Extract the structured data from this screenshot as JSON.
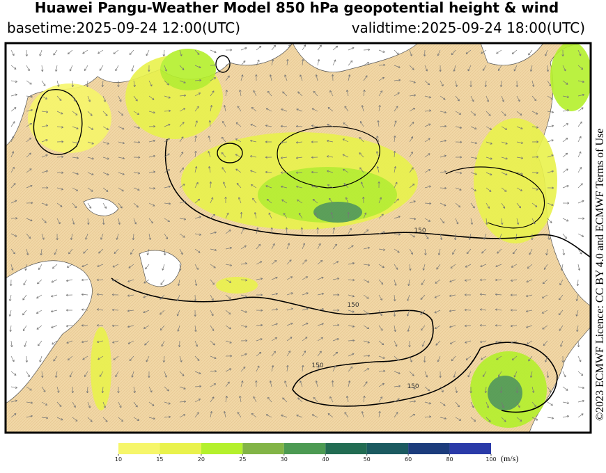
{
  "header": {
    "title": "Huawei Pangu-Weather Model 850 hPa geopotential height & wind",
    "basetime": "basetime:2025-09-24 12:00(UTC)",
    "validtime": "validtime:2025-09-24 18:00(UTC)"
  },
  "licence": "©2023 ECMWF Licence: CC BY 4.0 and ECMWF Terms of Use",
  "contour_labels": [
    "150",
    "150",
    "150",
    "150"
  ],
  "colorbar": {
    "levels": [
      10,
      15,
      20,
      25,
      30,
      40,
      50,
      60,
      80,
      100
    ],
    "colors": [
      "#f6f66a",
      "#e9f24c",
      "#b4f02c",
      "#82b446",
      "#4c9a52",
      "#226c52",
      "#1b5a60",
      "#1c3c7c",
      "#2a3aa8"
    ],
    "unit": "(m/s)"
  }
}
